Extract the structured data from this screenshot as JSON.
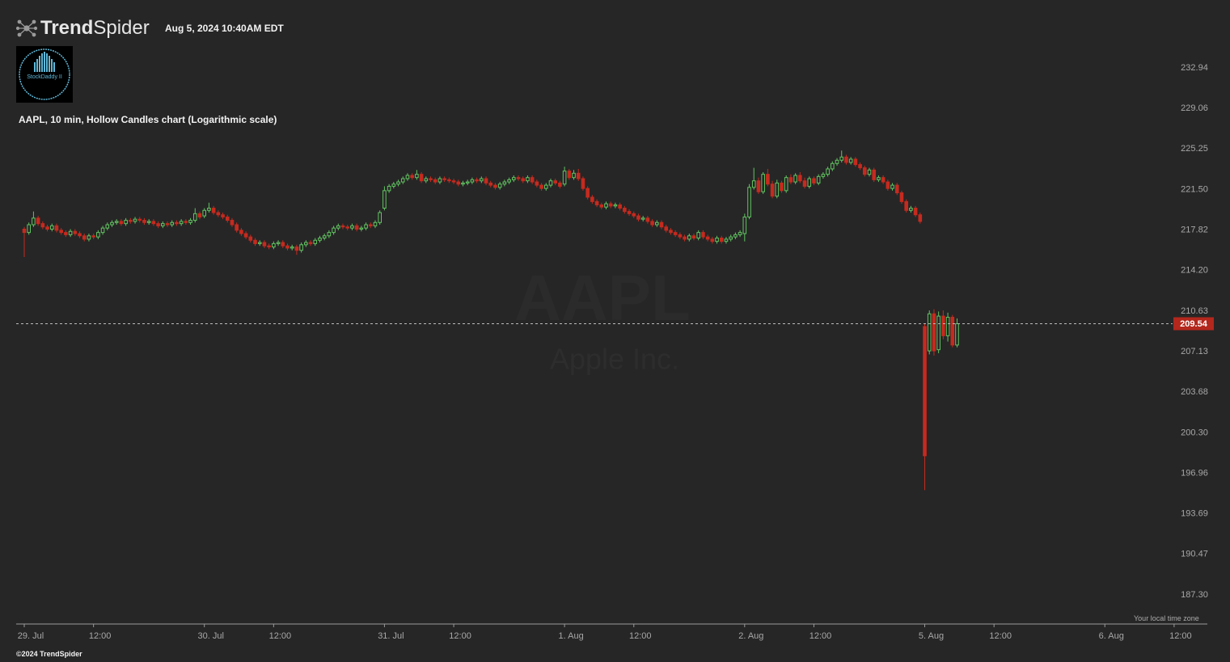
{
  "header": {
    "brand_bold": "Trend",
    "brand_light": "Spider",
    "timestamp": "Aug 5, 2024 10:40AM EDT",
    "badge": "StockDaddy II"
  },
  "footer": {
    "copyright": "©2024 TrendSpider",
    "timezone_note": "Your local time zone"
  },
  "chart_data": {
    "type": "candlestick",
    "title": "AAPL, 10 min, Hollow Candles chart (Logarithmic scale)",
    "watermark": "AAPL",
    "watermark_subtitle": "Apple Inc.",
    "log_scale": true,
    "grid": false,
    "up_color": "#62c462",
    "down_color": "#c62a1f",
    "last_price_color": "#b3271c",
    "ylim": [
      185.06,
      234.81
    ],
    "yticks": [
      232.94,
      229.06,
      225.25,
      {
        "value": 221.5,
        "label": "221.50"
      },
      217.82,
      {
        "value": 214.2,
        "label": "214.20"
      },
      210.63,
      207.13,
      203.68,
      {
        "value": 200.3,
        "label": "200.30"
      },
      196.96,
      193.69,
      190.47,
      {
        "value": 187.3,
        "label": "187.30"
      }
    ],
    "xlim": [
      -1.75,
      256.2
    ],
    "xticks": [
      {
        "value": 0,
        "label": "29. Jul"
      },
      {
        "value": 15,
        "label": "12:00"
      },
      {
        "value": 39,
        "label": "30. Jul"
      },
      {
        "value": 54,
        "label": "12:00"
      },
      {
        "value": 78,
        "label": "31. Jul"
      },
      {
        "value": 93,
        "label": "12:00"
      },
      {
        "value": 117,
        "label": "1. Aug"
      },
      {
        "value": 132,
        "label": "12:00"
      },
      {
        "value": 156,
        "label": "2. Aug"
      },
      {
        "value": 171,
        "label": "12:00"
      },
      {
        "value": 195,
        "label": "5. Aug"
      },
      {
        "value": 210,
        "label": "12:00"
      },
      {
        "value": 234,
        "label": "6. Aug"
      },
      {
        "value": 249,
        "label": "12:00"
      }
    ],
    "open": [
      217.9,
      217.6,
      218.3,
      218.9,
      218.4,
      218.1,
      217.9,
      218.2,
      217.8,
      217.6,
      217.4,
      217.7,
      217.5,
      217.3,
      217.0,
      217.3,
      217.2,
      217.6,
      218.0,
      218.3,
      218.5,
      218.6,
      218.4,
      218.7,
      218.6,
      218.8,
      218.7,
      218.5,
      218.6,
      218.4,
      218.2,
      218.4,
      218.3,
      218.5,
      218.4,
      218.6,
      218.5,
      218.7,
      219.3,
      219.1,
      219.6,
      219.8,
      219.4,
      219.2,
      219.0,
      218.7,
      218.3,
      217.8,
      217.5,
      217.2,
      216.9,
      216.6,
      216.7,
      216.4,
      216.3,
      216.6,
      216.7,
      216.4,
      216.2,
      216.3,
      216.0,
      216.5,
      216.7,
      216.6,
      216.9,
      217.1,
      217.3,
      217.6,
      218.0,
      218.2,
      218.1,
      218.0,
      218.2,
      217.9,
      218.0,
      218.3,
      218.2,
      218.5,
      219.8,
      221.4,
      221.8,
      222.0,
      222.2,
      222.5,
      222.8,
      222.6,
      222.9,
      222.3,
      222.5,
      222.4,
      222.2,
      222.5,
      222.4,
      222.3,
      222.2,
      222.0,
      222.1,
      222.2,
      222.4,
      222.3,
      222.5,
      222.1,
      221.9,
      221.7,
      222.0,
      222.2,
      222.4,
      222.6,
      222.5,
      222.3,
      222.6,
      222.2,
      221.9,
      221.6,
      221.9,
      222.3,
      222.1,
      222.0,
      223.2,
      222.6,
      223.0,
      222.5,
      221.6,
      220.8,
      220.4,
      220.1,
      219.9,
      220.2,
      220.0,
      220.1,
      219.8,
      219.5,
      219.3,
      219.1,
      218.8,
      218.9,
      218.6,
      218.3,
      218.5,
      218.1,
      217.8,
      217.6,
      217.4,
      217.2,
      217.0,
      217.3,
      217.1,
      217.6,
      217.2,
      217.0,
      216.8,
      217.1,
      216.8,
      217.0,
      217.2,
      217.4,
      217.5,
      219.0,
      221.7,
      222.3,
      221.3,
      222.9,
      222.0,
      220.9,
      222.1,
      221.4,
      222.6,
      222.2,
      222.8,
      222.3,
      221.8,
      222.5,
      222.1,
      222.7,
      222.9,
      223.4,
      223.9,
      224.2,
      224.5,
      224.0,
      224.3,
      223.8,
      223.5,
      222.9,
      223.3,
      222.4,
      222.6,
      222.2,
      221.6,
      221.9,
      221.2,
      220.4,
      219.6,
      219.8,
      219.2,
      209.3,
      207.2,
      210.4,
      207.3,
      210.2,
      208.5,
      210.1,
      207.7
    ],
    "high": [
      218.1,
      218.5,
      219.5,
      219.1,
      218.6,
      218.3,
      218.4,
      218.4,
      218.0,
      217.8,
      217.9,
      217.9,
      217.7,
      217.5,
      217.5,
      217.5,
      217.8,
      218.2,
      218.5,
      218.7,
      218.8,
      218.8,
      218.9,
      218.9,
      219.0,
      219.0,
      218.9,
      218.8,
      218.8,
      218.6,
      218.6,
      218.6,
      218.7,
      218.7,
      218.8,
      218.8,
      218.9,
      219.8,
      219.5,
      219.8,
      220.3,
      220.0,
      219.6,
      219.4,
      219.2,
      218.9,
      218.5,
      218.0,
      217.7,
      217.4,
      217.1,
      216.9,
      216.9,
      216.6,
      216.8,
      216.9,
      216.9,
      216.6,
      216.5,
      216.5,
      216.7,
      216.9,
      216.9,
      217.1,
      217.3,
      217.5,
      217.8,
      218.2,
      218.4,
      218.4,
      218.3,
      218.4,
      218.4,
      218.2,
      218.5,
      218.5,
      218.7,
      219.6,
      221.8,
      222.0,
      222.2,
      222.4,
      222.7,
      223.0,
      223.0,
      223.3,
      223.1,
      222.7,
      222.7,
      222.6,
      222.7,
      222.7,
      222.6,
      222.5,
      222.4,
      222.3,
      222.4,
      222.6,
      222.6,
      222.7,
      222.7,
      222.3,
      222.1,
      222.2,
      222.4,
      222.6,
      222.8,
      222.8,
      222.7,
      222.8,
      222.8,
      222.4,
      222.1,
      222.1,
      222.5,
      222.5,
      222.3,
      223.6,
      223.4,
      223.3,
      223.4,
      222.7,
      221.8,
      221.0,
      220.6,
      220.3,
      220.4,
      220.4,
      220.3,
      220.3,
      220.0,
      219.7,
      219.5,
      219.3,
      219.1,
      219.1,
      218.8,
      218.7,
      218.7,
      218.3,
      218.0,
      217.8,
      217.6,
      217.4,
      217.5,
      217.5,
      217.8,
      217.8,
      217.4,
      217.2,
      217.3,
      217.3,
      217.2,
      217.4,
      217.6,
      217.8,
      219.3,
      222.0,
      223.5,
      222.6,
      223.1,
      223.4,
      222.3,
      222.4,
      222.3,
      222.8,
      222.9,
      223.0,
      223.1,
      222.6,
      222.7,
      222.7,
      222.9,
      223.1,
      223.6,
      224.1,
      224.4,
      225.1,
      224.7,
      224.5,
      224.5,
      224.0,
      223.7,
      223.5,
      223.5,
      222.8,
      222.8,
      222.4,
      222.1,
      222.1,
      221.4,
      220.6,
      220.0,
      220.0,
      219.4,
      209.5,
      210.7,
      210.8,
      210.6,
      210.7,
      210.5,
      210.3,
      210.0
    ],
    "low": [
      215.4,
      217.4,
      218.1,
      218.2,
      217.9,
      217.7,
      217.7,
      217.6,
      217.4,
      217.2,
      217.2,
      217.3,
      217.1,
      216.8,
      216.8,
      217.0,
      217.0,
      217.4,
      217.8,
      218.1,
      218.3,
      218.2,
      218.2,
      218.4,
      218.4,
      218.5,
      218.3,
      218.3,
      218.2,
      218.0,
      218.0,
      218.1,
      218.1,
      218.2,
      218.2,
      218.3,
      218.3,
      218.5,
      218.8,
      218.9,
      219.4,
      219.2,
      219.0,
      218.8,
      218.5,
      218.1,
      217.6,
      217.3,
      217.0,
      216.7,
      216.4,
      216.4,
      216.2,
      216.1,
      216.1,
      216.4,
      216.2,
      216.0,
      216.0,
      215.6,
      215.8,
      216.3,
      216.4,
      216.4,
      216.7,
      216.9,
      217.1,
      217.4,
      217.8,
      217.9,
      217.8,
      217.8,
      217.7,
      217.7,
      217.8,
      218.0,
      218.0,
      218.3,
      219.6,
      221.2,
      221.6,
      221.8,
      222.0,
      222.3,
      222.4,
      222.4,
      222.1,
      222.1,
      222.2,
      222.0,
      222.0,
      222.2,
      222.1,
      222.0,
      221.8,
      221.8,
      221.9,
      222.0,
      222.1,
      222.1,
      221.9,
      221.7,
      221.5,
      221.5,
      221.8,
      222.0,
      222.2,
      222.3,
      222.1,
      222.1,
      222.0,
      221.7,
      221.4,
      221.4,
      221.7,
      221.9,
      221.6,
      221.8,
      222.4,
      222.4,
      222.3,
      221.4,
      220.6,
      220.2,
      219.9,
      219.7,
      219.7,
      219.8,
      219.8,
      219.6,
      219.3,
      219.1,
      218.9,
      218.6,
      218.6,
      218.4,
      218.1,
      218.1,
      217.9,
      217.6,
      217.4,
      217.2,
      217.0,
      216.8,
      216.8,
      216.9,
      216.9,
      217.0,
      216.8,
      216.6,
      216.6,
      216.6,
      216.6,
      216.8,
      217.0,
      217.2,
      216.8,
      218.8,
      221.5,
      221.1,
      221.1,
      221.8,
      220.7,
      220.7,
      221.2,
      221.2,
      222.0,
      222.0,
      222.1,
      221.6,
      221.6,
      221.9,
      221.9,
      222.5,
      222.7,
      223.2,
      223.7,
      224.0,
      223.8,
      223.8,
      223.6,
      223.3,
      222.7,
      222.7,
      222.2,
      222.2,
      222.0,
      221.4,
      221.4,
      221.0,
      220.2,
      219.4,
      219.4,
      219.0,
      218.4,
      195.6,
      206.9,
      206.8,
      207.0,
      208.2,
      208.0,
      207.5,
      207.5
    ],
    "close": [
      217.6,
      218.3,
      218.9,
      218.4,
      218.1,
      217.9,
      218.2,
      217.8,
      217.6,
      217.4,
      217.7,
      217.5,
      217.3,
      217.0,
      217.3,
      217.2,
      217.6,
      218.0,
      218.3,
      218.5,
      218.6,
      218.4,
      218.7,
      218.6,
      218.8,
      218.7,
      218.5,
      218.6,
      218.4,
      218.2,
      218.4,
      218.3,
      218.5,
      218.4,
      218.6,
      218.5,
      218.7,
      219.3,
      219.0,
      219.6,
      219.8,
      219.4,
      219.2,
      219.0,
      218.7,
      218.3,
      217.8,
      217.5,
      217.2,
      216.9,
      216.6,
      216.7,
      216.4,
      216.3,
      216.6,
      216.7,
      216.4,
      216.2,
      216.3,
      216.0,
      216.5,
      216.7,
      216.6,
      216.9,
      217.1,
      217.3,
      217.6,
      218.0,
      218.2,
      218.1,
      218.0,
      218.2,
      217.9,
      218.0,
      218.3,
      218.2,
      218.5,
      219.4,
      221.4,
      221.8,
      222.0,
      222.2,
      222.5,
      222.8,
      222.6,
      222.9,
      222.3,
      222.5,
      222.4,
      222.2,
      222.5,
      222.4,
      222.3,
      222.2,
      222.0,
      222.1,
      222.2,
      222.4,
      222.3,
      222.5,
      222.1,
      221.9,
      221.7,
      222.0,
      222.2,
      222.4,
      222.6,
      222.5,
      222.3,
      222.6,
      222.2,
      221.9,
      221.6,
      221.9,
      222.3,
      222.1,
      221.8,
      223.2,
      222.6,
      223.0,
      222.5,
      221.6,
      220.8,
      220.4,
      220.1,
      219.9,
      220.2,
      220.0,
      220.1,
      219.8,
      219.5,
      219.3,
      219.1,
      218.8,
      218.9,
      218.6,
      218.3,
      218.5,
      218.1,
      217.8,
      217.6,
      217.4,
      217.2,
      217.0,
      217.3,
      217.1,
      217.6,
      217.2,
      217.0,
      216.8,
      217.1,
      216.8,
      217.0,
      217.2,
      217.4,
      217.6,
      219.0,
      221.7,
      222.3,
      221.3,
      222.9,
      222.0,
      220.9,
      222.1,
      221.4,
      222.6,
      222.2,
      222.8,
      222.3,
      221.8,
      222.5,
      222.1,
      222.7,
      222.9,
      223.4,
      223.9,
      224.2,
      224.5,
      224.0,
      224.3,
      223.8,
      223.5,
      222.9,
      223.3,
      222.4,
      222.6,
      222.2,
      221.6,
      221.9,
      221.2,
      220.4,
      219.6,
      219.8,
      219.2,
      218.6,
      198.4,
      210.4,
      207.2,
      210.2,
      208.5,
      210.1,
      207.7,
      209.54
    ]
  }
}
